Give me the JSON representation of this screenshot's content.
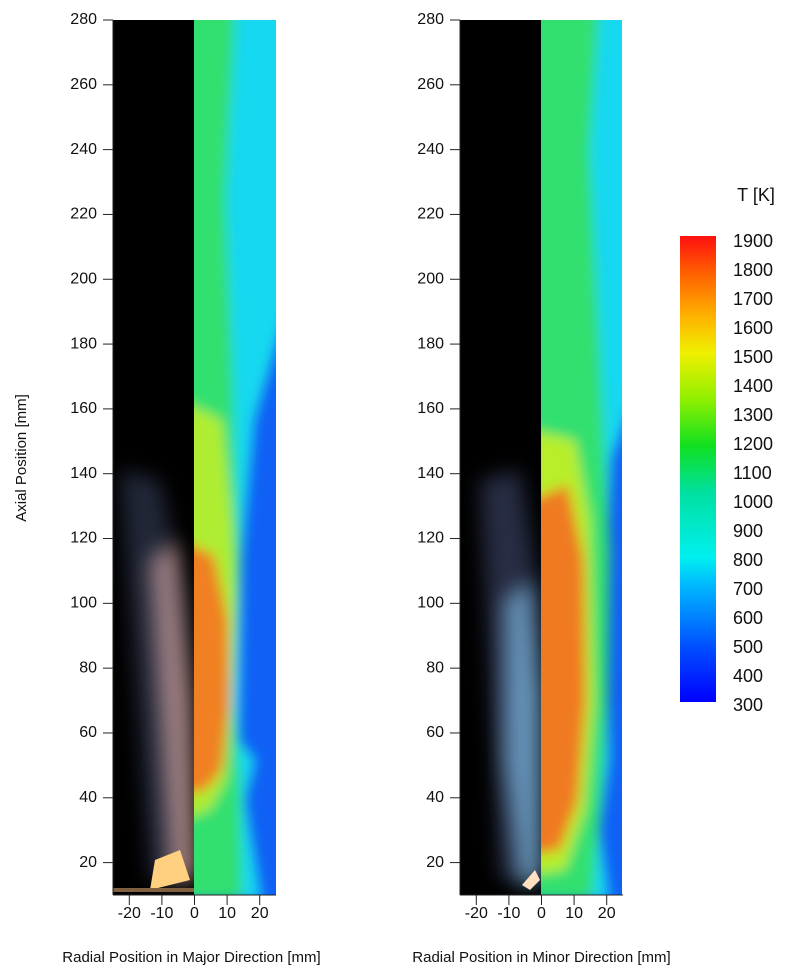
{
  "chart_data": [
    {
      "type": "contour",
      "xlabel": "Radial Position in Major Direction [mm]",
      "ylabel": "Axial Position [mm]",
      "xlim": [
        -25,
        25
      ],
      "xticks": [
        -20,
        -10,
        0,
        10,
        20
      ],
      "ylim": [
        10,
        280
      ],
      "yticks": [
        20,
        40,
        60,
        80,
        100,
        120,
        140,
        160,
        180,
        200,
        220,
        240,
        260,
        280
      ]
    },
    {
      "type": "contour",
      "xlabel": "Radial Position in Minor Direction [mm]",
      "xlim": [
        -25,
        25
      ],
      "xticks": [
        -20,
        -10,
        0,
        10,
        20
      ],
      "ylim": [
        10,
        280
      ],
      "yticks": [
        20,
        40,
        60,
        80,
        100,
        120,
        140,
        160,
        180,
        200,
        220,
        240,
        260,
        280
      ]
    }
  ],
  "colorbar": {
    "title": "T [K]",
    "lim": [
      300,
      1900
    ],
    "ticks": [
      300,
      400,
      500,
      600,
      700,
      800,
      900,
      1000,
      1100,
      1200,
      1300,
      1400,
      1500,
      1600,
      1700,
      1800,
      1900
    ]
  }
}
